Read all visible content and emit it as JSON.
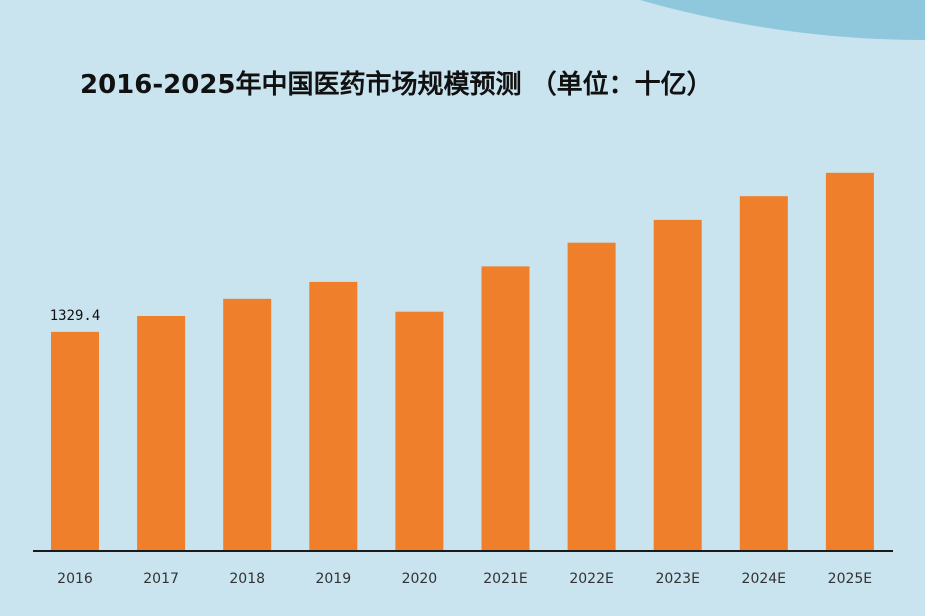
{
  "theme": {
    "background": "#c9e3ef",
    "corner_accent": "#8fc8dc",
    "bar_color": "#f07f2c",
    "axis_color": "#1a1a1a",
    "title_color": "#111111",
    "tick_color": "#333333"
  },
  "chart_data": {
    "type": "bar",
    "title": "2016-2025年中国医药市场规模预测 （单位：十亿）",
    "xlabel": "",
    "ylabel": "",
    "ylim": [
      0,
      2300
    ],
    "grid": false,
    "categories": [
      "2016",
      "2017",
      "2018",
      "2019",
      "2020",
      "2021E",
      "2022E",
      "2023E",
      "2024E",
      "2025E"
    ],
    "series": [
      {
        "name": "中国医药市场规模",
        "values": [
          1329.4,
          1426.4,
          1530.2,
          1633.0,
          1452.1,
          1727.4,
          1871.0,
          2009.1,
          2153.0,
          2295.4
        ]
      }
    ],
    "data_labels": [
      {
        "index": 0,
        "text": "1329.4"
      }
    ]
  }
}
